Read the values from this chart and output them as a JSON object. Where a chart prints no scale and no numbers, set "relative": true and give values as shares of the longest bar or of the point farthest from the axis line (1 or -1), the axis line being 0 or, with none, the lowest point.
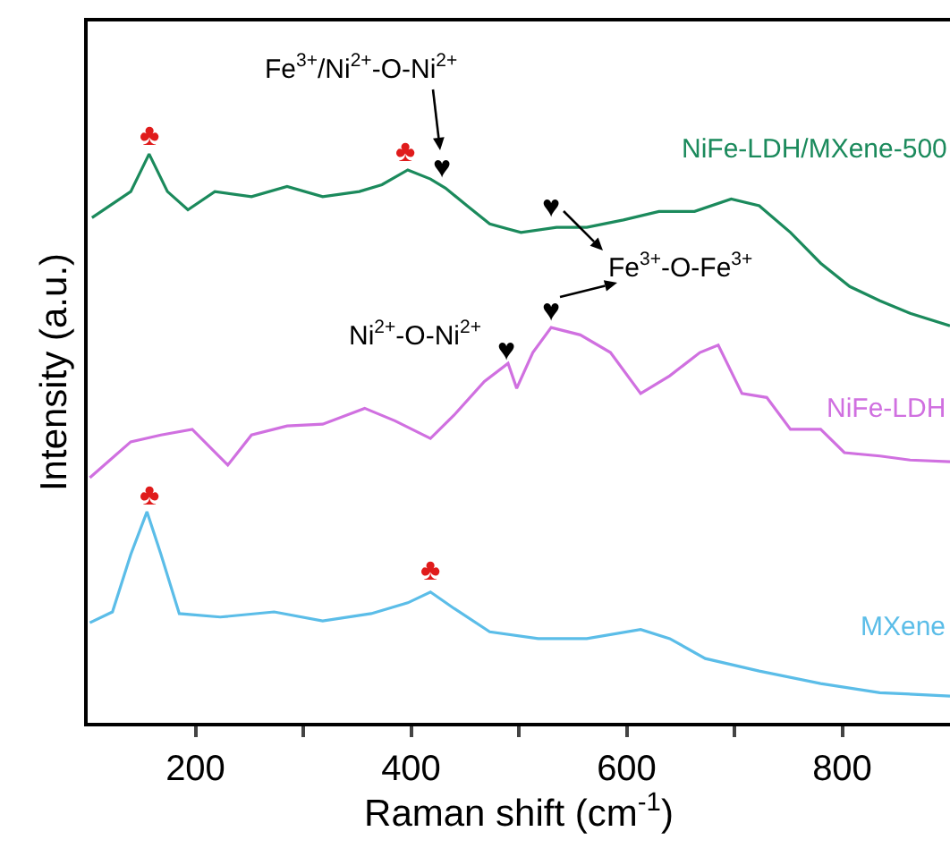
{
  "chart_data": {
    "type": "line",
    "relative": true,
    "xlabel": "Raman shift (cm$^{-1}$)",
    "ylabel": "Intensity (a.u.)",
    "xlim": [
      100,
      900
    ],
    "xticks": [
      200,
      {
        "value": 300,
        "label": null
      },
      400,
      {
        "value": 500,
        "label": null
      },
      600,
      {
        "value": 700,
        "label": null
      },
      800
    ],
    "tick_labels": "x",
    "grid": false,
    "legend": false,
    "marker": "none",
    "line_style": "solid",
    "series": [
      {
        "name": "NiFe-LDH/MXene-500",
        "color": "#1b8a5c",
        "x": [
          104,
          140,
          157,
          174,
          193,
          218,
          252,
          285,
          318,
          352,
          373,
          397,
          418,
          432,
          452,
          473,
          502,
          535,
          563,
          597,
          630,
          663,
          697,
          723,
          752,
          780,
          807,
          835,
          863,
          900
        ],
        "values": [
          0.888,
          0.934,
          1.0,
          0.934,
          0.902,
          0.934,
          0.925,
          0.943,
          0.925,
          0.934,
          0.946,
          0.972,
          0.956,
          0.94,
          0.909,
          0.877,
          0.862,
          0.871,
          0.871,
          0.884,
          0.899,
          0.899,
          0.921,
          0.909,
          0.862,
          0.808,
          0.767,
          0.742,
          0.72,
          0.698
        ]
      },
      {
        "name": "NiFe-LDH",
        "color": "#d070e0",
        "x": [
          102,
          140,
          168,
          197,
          230,
          252,
          285,
          318,
          357,
          385,
          418,
          440,
          468,
          490,
          498,
          513,
          530,
          557,
          585,
          613,
          640,
          668,
          685,
          707,
          730,
          752,
          780,
          802,
          835,
          863,
          900
        ],
        "values": [
          0.431,
          0.494,
          0.506,
          0.516,
          0.453,
          0.506,
          0.522,
          0.525,
          0.553,
          0.531,
          0.5,
          0.541,
          0.6,
          0.632,
          0.588,
          0.651,
          0.695,
          0.682,
          0.651,
          0.579,
          0.61,
          0.651,
          0.664,
          0.579,
          0.572,
          0.516,
          0.516,
          0.475,
          0.469,
          0.462,
          0.459
        ]
      },
      {
        "name": "MXene",
        "color": "#5bbde8",
        "x": [
          102,
          123,
          140,
          155,
          168,
          185,
          223,
          273,
          318,
          363,
          397,
          418,
          440,
          473,
          518,
          563,
          613,
          640,
          673,
          723,
          780,
          835,
          900
        ],
        "values": [
          0.176,
          0.195,
          0.296,
          0.371,
          0.296,
          0.192,
          0.186,
          0.195,
          0.179,
          0.192,
          0.211,
          0.23,
          0.201,
          0.16,
          0.148,
          0.148,
          0.164,
          0.148,
          0.113,
          0.091,
          0.069,
          0.053,
          0.047
        ]
      }
    ],
    "annotations": [
      "♣",
      "♣",
      "♥",
      "♥",
      "♥",
      "♥",
      "♣",
      "♣",
      "Fe$^{3+}$/Ni$^{2+}$-O-Ni$^{2+}$",
      "Fe$^{3+}$-O-Fe$^{3+}$",
      "Ni$^{2+}$-O-Ni$^{2+}$"
    ]
  }
}
